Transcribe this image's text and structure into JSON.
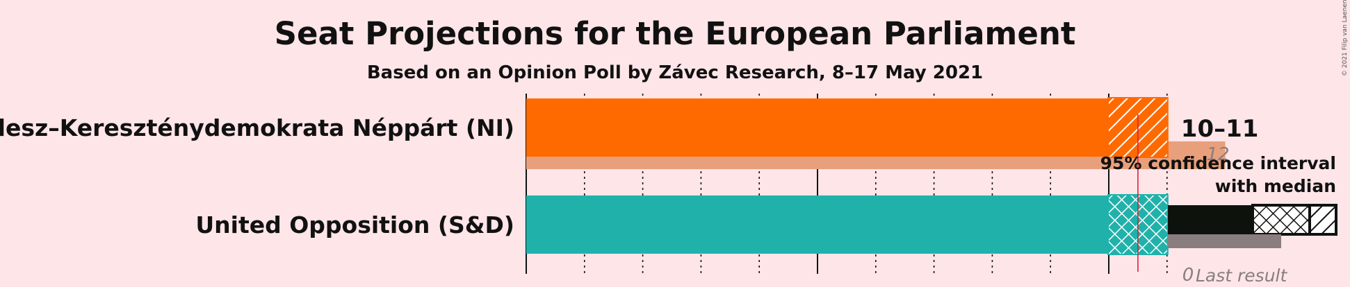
{
  "chart_data": {
    "type": "bar",
    "title": "Seat Projections for the European Parliament",
    "subtitle": "Based on an Opinion Poll by Závec Research, 8–17 May 2021",
    "copyright": "© 2021 Filip van Laenen",
    "xlim": [
      0,
      11
    ],
    "majority_line": 10.5,
    "series": [
      {
        "name": "Fidesz–Kereszténydemokrata Néppárt (NI)",
        "color": "#ff6a00",
        "last_color": "#e8a07c",
        "ci_low": 10,
        "ci_high": 11,
        "median": 10,
        "range_label": "10–11",
        "last_result": 12,
        "last_label": "12"
      },
      {
        "name": "United Opposition (S&D)",
        "color": "#20b2aa",
        "last_color": "#9c8f92",
        "ci_low": 10,
        "ci_high": 11,
        "median": 10,
        "range_label": "",
        "last_result": 0,
        "last_label": "0"
      }
    ],
    "legend": {
      "line1": "95% confidence interval",
      "line2": "with median",
      "last": "Last result"
    }
  }
}
